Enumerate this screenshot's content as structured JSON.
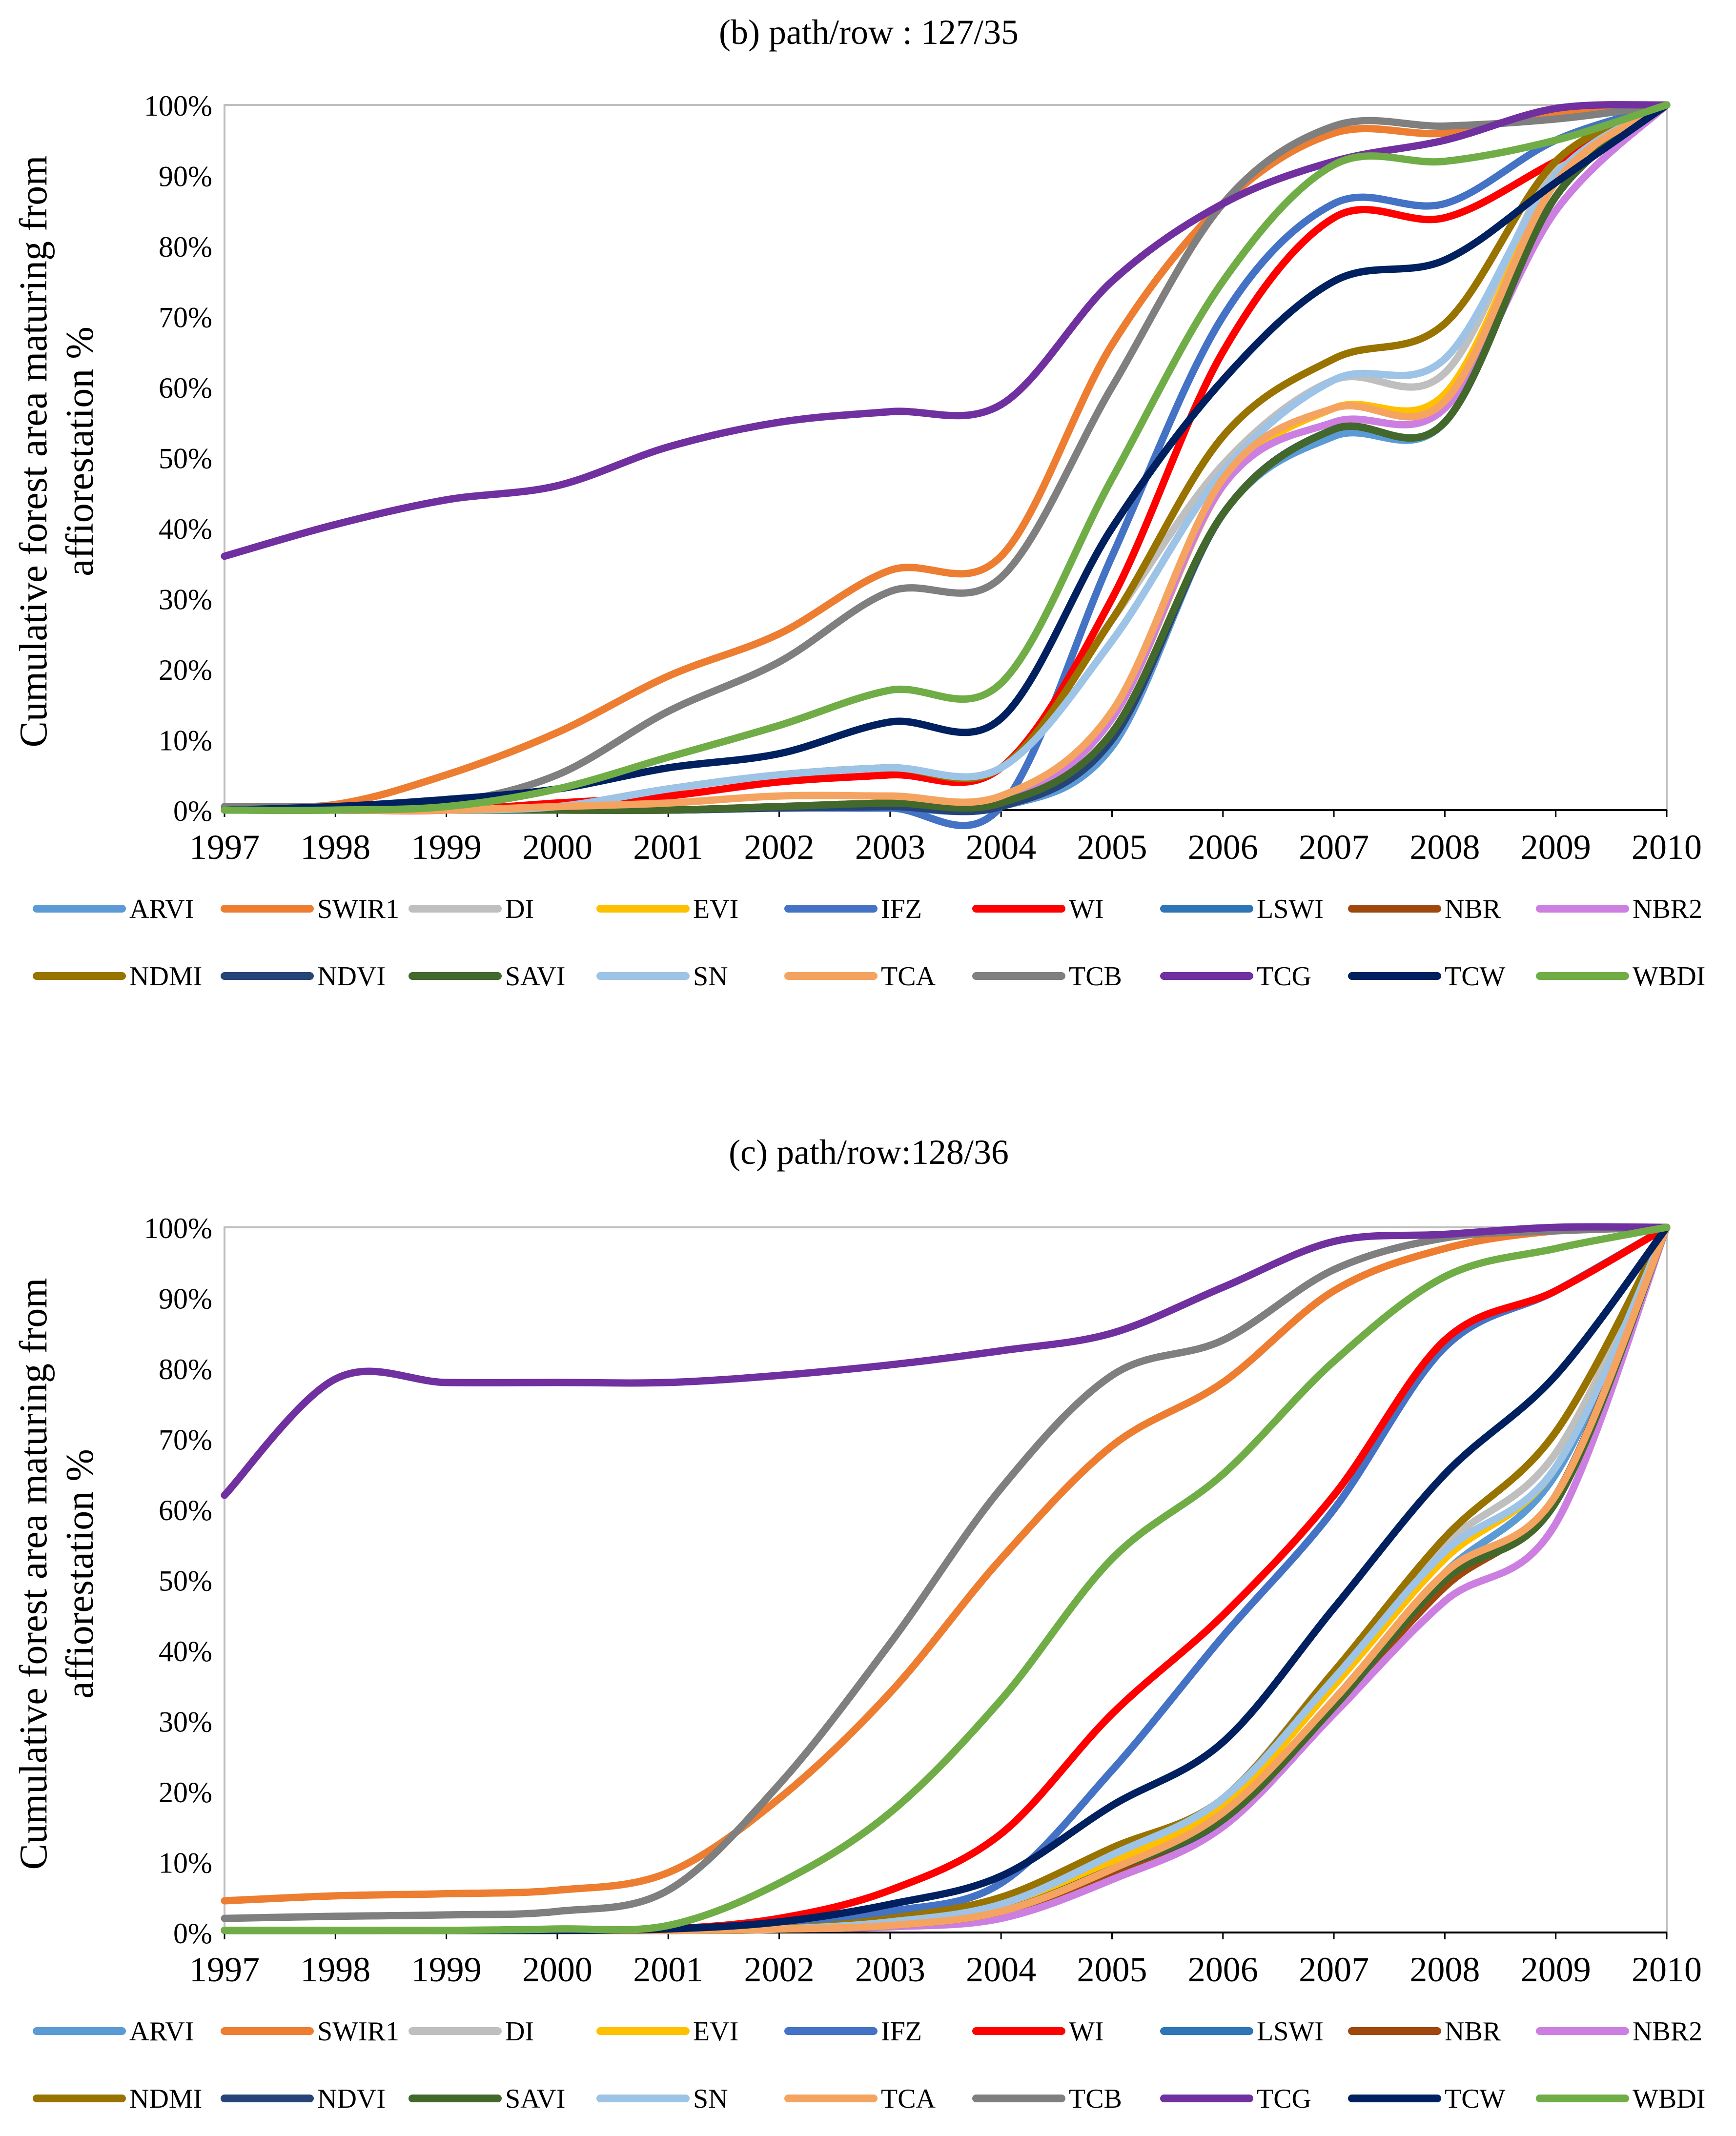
{
  "chart_data": [
    {
      "type": "line",
      "title": "(b) path/row : 127/35",
      "ylabel_lines": [
        "Cumulative forest area maturing from",
        "affiorestation %"
      ],
      "xlabel": "",
      "x": [
        1997,
        1998,
        1999,
        2000,
        2001,
        2002,
        2003,
        2004,
        2005,
        2006,
        2007,
        2008,
        2009,
        2010
      ],
      "xlim": [
        1997,
        2010
      ],
      "ylim": [
        0,
        100
      ],
      "y_ticks": [
        "0%",
        "10%",
        "20%",
        "30%",
        "40%",
        "50%",
        "60%",
        "70%",
        "80%",
        "90%",
        "100%"
      ],
      "grid": false,
      "legend": "bottom",
      "series": [
        {
          "name": "ARVI",
          "color": "#5B9BD5",
          "values": [
            0,
            0,
            0,
            0,
            0,
            0.3,
            0.3,
            0.5,
            9,
            42,
            53,
            55,
            87,
            100
          ]
        },
        {
          "name": "SWIR1",
          "color": "#ED7D31",
          "values": [
            0.5,
            0.8,
            5,
            11,
            19,
            25,
            34,
            36,
            66,
            86,
            96,
            96,
            99,
            100
          ]
        },
        {
          "name": "DI",
          "color": "#BFBFBF",
          "values": [
            0,
            0,
            0,
            0.5,
            3,
            5,
            6,
            6,
            27,
            49,
            61,
            62,
            91,
            100
          ]
        },
        {
          "name": "EVI",
          "color": "#FFC000",
          "values": [
            0,
            0,
            0,
            0,
            0,
            0.5,
            1,
            1,
            13,
            46,
            57,
            59,
            89,
            100
          ]
        },
        {
          "name": "IFZ",
          "color": "#4472C4",
          "values": [
            0,
            0,
            0,
            0,
            0,
            0.3,
            0.3,
            0.5,
            36,
            70,
            86,
            86,
            95,
            100
          ]
        },
        {
          "name": "WI",
          "color": "#FF0000",
          "values": [
            0,
            0,
            0,
            1,
            2,
            4,
            5,
            6,
            30,
            65,
            84,
            84,
            92,
            100
          ]
        },
        {
          "name": "LSWI",
          "color": "#2E75B6",
          "values": [
            0,
            0,
            0,
            0,
            0,
            0.3,
            0.5,
            0.5,
            10,
            42,
            54,
            55,
            87,
            100
          ]
        },
        {
          "name": "NBR",
          "color": "#9E480E",
          "values": [
            0,
            0,
            0,
            0,
            0,
            0.5,
            0.8,
            0.8,
            10,
            42,
            54,
            55,
            87,
            100
          ]
        },
        {
          "name": "NBR2",
          "color": "#CC7FE0",
          "values": [
            0,
            0,
            0,
            0,
            0,
            0.5,
            1,
            1,
            13,
            46,
            55,
            57,
            85,
            100
          ]
        },
        {
          "name": "NDMI",
          "color": "#997300",
          "values": [
            0,
            0,
            0,
            0.5,
            3,
            5,
            6,
            6,
            27,
            53,
            64,
            69,
            92,
            100
          ]
        },
        {
          "name": "NDVI",
          "color": "#264478",
          "values": [
            0,
            0,
            0,
            0,
            0,
            0.3,
            0.5,
            0.5,
            10,
            42,
            54,
            55,
            87,
            100
          ]
        },
        {
          "name": "SAVI",
          "color": "#43682B",
          "values": [
            0,
            0,
            0,
            0,
            0,
            0.5,
            1,
            1,
            11,
            42,
            54,
            55,
            87,
            100
          ]
        },
        {
          "name": "SN",
          "color": "#9DC3E6",
          "values": [
            0,
            0,
            0,
            0.5,
            3,
            5,
            6,
            6,
            24,
            48,
            61,
            64,
            90,
            100
          ]
        },
        {
          "name": "TCA",
          "color": "#F4A460",
          "values": [
            0,
            0,
            0,
            0.5,
            1,
            2,
            2,
            2,
            14,
            47,
            57,
            58,
            89,
            100
          ]
        },
        {
          "name": "TCB",
          "color": "#7F7F7F",
          "values": [
            0.5,
            0.5,
            1,
            5,
            14,
            21,
            31,
            33,
            60,
            86,
            97,
            97,
            98,
            100
          ]
        },
        {
          "name": "TCG",
          "color": "#7030A0",
          "values": [
            36,
            40.5,
            44,
            46,
            51.5,
            55,
            56.5,
            57.5,
            75,
            86,
            92,
            95,
            99.5,
            100
          ]
        },
        {
          "name": "TCW",
          "color": "#002060",
          "values": [
            0,
            0.5,
            1.5,
            3,
            6,
            8,
            12.5,
            13,
            40,
            61,
            75,
            78,
            89,
            100
          ]
        },
        {
          "name": "WBDI",
          "color": "#70AD47",
          "values": [
            0,
            0,
            0.5,
            3,
            7.5,
            12,
            17,
            18,
            47,
            75,
            91.5,
            92,
            95,
            100
          ]
        }
      ]
    },
    {
      "type": "line",
      "title": "(c) path/row:128/36",
      "ylabel_lines": [
        "Cumulative forest area maturing from",
        "affiorestation %"
      ],
      "xlabel": "",
      "x": [
        1997,
        1998,
        1999,
        2000,
        2001,
        2002,
        2003,
        2004,
        2005,
        2006,
        2007,
        2008,
        2009,
        2010
      ],
      "xlim": [
        1997,
        2010
      ],
      "ylim": [
        0,
        100
      ],
      "y_ticks": [
        "0%",
        "10%",
        "20%",
        "30%",
        "40%",
        "50%",
        "60%",
        "70%",
        "80%",
        "90%",
        "100%"
      ],
      "grid": false,
      "legend": "bottom",
      "series": [
        {
          "name": "ARVI",
          "color": "#5B9BD5",
          "values": [
            0.3,
            0.3,
            0.3,
            0.3,
            0.3,
            0.5,
            1,
            3,
            9,
            16,
            33,
            51,
            65,
            100
          ]
        },
        {
          "name": "SWIR1",
          "color": "#ED7D31",
          "values": [
            4.5,
            5.2,
            5.5,
            6,
            8.5,
            19,
            34,
            53,
            69,
            78,
            91,
            97,
            99.5,
            100
          ]
        },
        {
          "name": "DI",
          "color": "#BFBFBF",
          "values": [
            0.3,
            0.3,
            0.3,
            0.3,
            0.3,
            0.5,
            1.5,
            4,
            11,
            19,
            37,
            55,
            68,
            100
          ]
        },
        {
          "name": "EVI",
          "color": "#FFC000",
          "values": [
            0.3,
            0.3,
            0.3,
            0.3,
            0.3,
            0.5,
            1.5,
            3.5,
            10,
            18,
            35,
            53,
            66,
            100
          ]
        },
        {
          "name": "IFZ",
          "color": "#4472C4",
          "values": [
            0.3,
            0.3,
            0.3,
            0.3,
            0.5,
            1.5,
            3,
            7,
            23,
            42,
            60,
            83,
            91,
            100
          ]
        },
        {
          "name": "WI",
          "color": "#FF0000",
          "values": [
            0.3,
            0.3,
            0.3,
            0.3,
            0.5,
            2,
            6,
            14,
            31,
            45,
            62,
            84,
            91,
            100
          ]
        },
        {
          "name": "LSWI",
          "color": "#2E75B6",
          "values": [
            0.3,
            0.3,
            0.3,
            0.3,
            0.3,
            0.5,
            1,
            3,
            9,
            16,
            33,
            50,
            62,
            100
          ]
        },
        {
          "name": "NBR",
          "color": "#9E480E",
          "values": [
            0.3,
            0.3,
            0.3,
            0.3,
            0.3,
            0.5,
            1,
            2.5,
            8,
            16,
            32,
            49,
            62,
            100
          ]
        },
        {
          "name": "NBR2",
          "color": "#CC7FE0",
          "values": [
            0.3,
            0.3,
            0.3,
            0.3,
            0.3,
            0.5,
            0.8,
            2,
            7.5,
            15,
            31,
            47,
            58,
            100
          ]
        },
        {
          "name": "NDMI",
          "color": "#997300",
          "values": [
            0.3,
            0.3,
            0.3,
            0.3,
            0.3,
            0.5,
            2,
            5,
            12,
            19,
            37,
            56,
            71,
            100
          ]
        },
        {
          "name": "NDVI",
          "color": "#264478",
          "values": [
            0.3,
            0.3,
            0.3,
            0.3,
            0.3,
            0.5,
            1,
            3,
            9,
            16,
            33,
            50,
            62,
            100
          ]
        },
        {
          "name": "SAVI",
          "color": "#43682B",
          "values": [
            0.3,
            0.3,
            0.3,
            0.3,
            0.3,
            0.5,
            1,
            3,
            9,
            16,
            32,
            50,
            61,
            100
          ]
        },
        {
          "name": "SN",
          "color": "#9DC3E6",
          "values": [
            0.3,
            0.3,
            0.3,
            0.3,
            0.3,
            0.5,
            1.5,
            4,
            11,
            19,
            36,
            54,
            66,
            100
          ]
        },
        {
          "name": "TCA",
          "color": "#F4A460",
          "values": [
            0.3,
            0.3,
            0.3,
            0.3,
            0.3,
            0.5,
            1,
            3,
            9,
            17,
            33,
            51,
            62,
            100
          ]
        },
        {
          "name": "TCB",
          "color": "#7F7F7F",
          "values": [
            2,
            2.3,
            2.5,
            3,
            6,
            21,
            41,
            63,
            79,
            84,
            94,
            98.5,
            99.5,
            100
          ]
        },
        {
          "name": "TCG",
          "color": "#7030A0",
          "values": [
            62,
            78.5,
            78,
            78,
            78,
            79,
            80.5,
            82.5,
            85,
            91.5,
            98,
            99,
            100,
            100
          ]
        },
        {
          "name": "TCW",
          "color": "#002060",
          "values": [
            0.3,
            0.3,
            0.3,
            0.3,
            0.5,
            1.5,
            4,
            8,
            18,
            27,
            46,
            65,
            79,
            100
          ]
        },
        {
          "name": "WBDI",
          "color": "#70AD47",
          "values": [
            0.3,
            0.3,
            0.3,
            0.5,
            1,
            7,
            17,
            33,
            53,
            65,
            81,
            93,
            97,
            100
          ]
        }
      ]
    }
  ]
}
